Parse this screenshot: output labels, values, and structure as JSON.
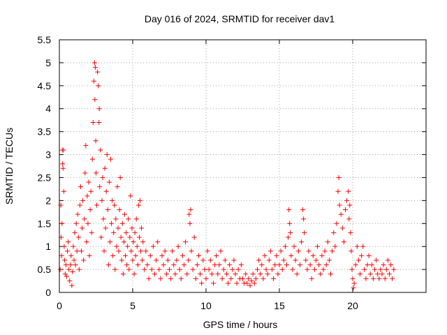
{
  "chart_data": {
    "type": "scatter",
    "title": "Day 016 of 2024, SRMTID for receiver dav1",
    "xlabel": "GPS time / hours",
    "ylabel": "SRMTID / TECUs",
    "xlim": [
      0,
      25
    ],
    "ylim": [
      0,
      5.5
    ],
    "xticks": [
      0,
      5,
      10,
      15,
      20
    ],
    "xtick_labels": [
      "0",
      "5",
      "10",
      "15",
      "20"
    ],
    "yticks": [
      0,
      0.5,
      1,
      1.5,
      2,
      2.5,
      3,
      3.5,
      4,
      4.5,
      5,
      5.5
    ],
    "ytick_labels": [
      "0",
      "0.5",
      "1",
      "1.5",
      "2",
      "2.5",
      "3",
      "3.5",
      "4",
      "4.5",
      "5",
      "5.5"
    ],
    "grid": true,
    "marker": "+",
    "color": "#ff0000",
    "series": [
      {
        "name": "SRMTID",
        "points": [
          [
            0.05,
            0.5
          ],
          [
            0.1,
            1.9
          ],
          [
            0.12,
            1.2
          ],
          [
            0.15,
            0.8
          ],
          [
            0.18,
            1.5
          ],
          [
            0.2,
            3.1
          ],
          [
            0.22,
            2.8
          ],
          [
            0.25,
            2.7
          ],
          [
            0.28,
            3.1
          ],
          [
            0.3,
            2.2
          ],
          [
            0.33,
            1.0
          ],
          [
            0.36,
            0.7
          ],
          [
            0.4,
            0.4
          ],
          [
            0.45,
            0.6
          ],
          [
            0.5,
            0.35
          ],
          [
            0.55,
            0.9
          ],
          [
            0.6,
            1.1
          ],
          [
            0.65,
            0.5
          ],
          [
            0.7,
            0.25
          ],
          [
            0.75,
            0.6
          ],
          [
            0.8,
            0.8
          ],
          [
            0.85,
            0.15
          ],
          [
            0.9,
            0.45
          ],
          [
            0.95,
            1.0
          ],
          [
            1.0,
            0.7
          ],
          [
            1.05,
            1.3
          ],
          [
            1.1,
            0.6
          ],
          [
            1.15,
            1.5
          ],
          [
            1.2,
            0.9
          ],
          [
            1.25,
            1.7
          ],
          [
            1.3,
            1.2
          ],
          [
            1.35,
            0.5
          ],
          [
            1.4,
            1.9
          ],
          [
            1.45,
            2.3
          ],
          [
            1.5,
            0.9
          ],
          [
            1.55,
            1.4
          ],
          [
            1.6,
            2.0
          ],
          [
            1.65,
            0.7
          ],
          [
            1.7,
            1.6
          ],
          [
            1.75,
            2.6
          ],
          [
            1.8,
            3.2
          ],
          [
            1.85,
            1.1
          ],
          [
            1.9,
            2.1
          ],
          [
            1.95,
            1.5
          ],
          [
            2.0,
            2.4
          ],
          [
            2.05,
            0.8
          ],
          [
            2.1,
            1.8
          ],
          [
            2.15,
            2.2
          ],
          [
            2.2,
            1.3
          ],
          [
            2.25,
            2.9
          ],
          [
            2.3,
            3.7
          ],
          [
            2.35,
            4.6
          ],
          [
            2.4,
            5.0
          ],
          [
            2.42,
            4.2
          ],
          [
            2.45,
            4.9
          ],
          [
            2.48,
            3.3
          ],
          [
            2.5,
            2.6
          ],
          [
            2.55,
            1.9
          ],
          [
            2.6,
            4.8
          ],
          [
            2.65,
            4.5
          ],
          [
            2.7,
            3.7
          ],
          [
            2.72,
            4.0
          ],
          [
            2.75,
            2.3
          ],
          [
            2.8,
            3.1
          ],
          [
            2.85,
            1.2
          ],
          [
            2.9,
            2.0
          ],
          [
            2.95,
            2.5
          ],
          [
            3.0,
            1.6
          ],
          [
            3.05,
            0.9
          ],
          [
            3.1,
            2.7
          ],
          [
            3.15,
            1.4
          ],
          [
            3.2,
            2.2
          ],
          [
            3.25,
            3.0
          ],
          [
            3.3,
            1.8
          ],
          [
            3.35,
            0.6
          ],
          [
            3.4,
            2.4
          ],
          [
            3.45,
            1.1
          ],
          [
            3.5,
            2.9
          ],
          [
            3.55,
            1.5
          ],
          [
            3.6,
            2.0
          ],
          [
            3.65,
            0.8
          ],
          [
            3.7,
            1.3
          ],
          [
            3.75,
            1.9
          ],
          [
            3.8,
            0.5
          ],
          [
            3.85,
            1.6
          ],
          [
            3.9,
            1.0
          ],
          [
            3.95,
            2.3
          ],
          [
            4.0,
            1.4
          ],
          [
            4.05,
            0.9
          ],
          [
            4.1,
            1.8
          ],
          [
            4.15,
            2.5
          ],
          [
            4.2,
            1.2
          ],
          [
            4.25,
            0.7
          ],
          [
            4.3,
            1.5
          ],
          [
            4.35,
            0.4
          ],
          [
            4.4,
            1.1
          ],
          [
            4.45,
            1.7
          ],
          [
            4.5,
            0.8
          ],
          [
            4.55,
            1.3
          ],
          [
            4.6,
            0.6
          ],
          [
            4.65,
            1.0
          ],
          [
            4.7,
            1.6
          ],
          [
            4.75,
            0.5
          ],
          [
            4.8,
            1.2
          ],
          [
            4.85,
            2.1
          ],
          [
            4.9,
            0.9
          ],
          [
            4.95,
            1.4
          ],
          [
            5.0,
            0.7
          ],
          [
            5.05,
            1.1
          ],
          [
            5.1,
            0.4
          ],
          [
            5.15,
            1.3
          ],
          [
            5.2,
            0.8
          ],
          [
            5.25,
            1.6
          ],
          [
            5.3,
            1.0
          ],
          [
            5.35,
            0.6
          ],
          [
            5.4,
            1.9
          ],
          [
            5.45,
            1.2
          ],
          [
            5.5,
            2.0
          ],
          [
            5.55,
            0.9
          ],
          [
            5.6,
            1.4
          ],
          [
            5.65,
            0.7
          ],
          [
            5.7,
            1.1
          ],
          [
            5.8,
            0.5
          ],
          [
            5.9,
            0.9
          ],
          [
            6.0,
            0.6
          ],
          [
            6.1,
            0.3
          ],
          [
            6.2,
            0.8
          ],
          [
            6.3,
            0.5
          ],
          [
            6.4,
            1.0
          ],
          [
            6.5,
            0.4
          ],
          [
            6.6,
            0.7
          ],
          [
            6.7,
            1.1
          ],
          [
            6.8,
            0.5
          ],
          [
            6.9,
            0.3
          ],
          [
            7.0,
            0.8
          ],
          [
            7.1,
            0.6
          ],
          [
            7.2,
            0.9
          ],
          [
            7.3,
            0.4
          ],
          [
            7.4,
            0.7
          ],
          [
            7.5,
            0.5
          ],
          [
            7.6,
            0.3
          ],
          [
            7.7,
            0.9
          ],
          [
            7.8,
            0.6
          ],
          [
            7.9,
            0.4
          ],
          [
            8.0,
            0.7
          ],
          [
            8.1,
            1.0
          ],
          [
            8.2,
            0.5
          ],
          [
            8.3,
            0.3
          ],
          [
            8.4,
            0.8
          ],
          [
            8.5,
            0.6
          ],
          [
            8.6,
            1.1
          ],
          [
            8.7,
            0.4
          ],
          [
            8.8,
            0.7
          ],
          [
            8.85,
            1.7
          ],
          [
            8.9,
            1.5
          ],
          [
            8.95,
            1.8
          ],
          [
            9.0,
            0.9
          ],
          [
            9.1,
            0.5
          ],
          [
            9.2,
            1.2
          ],
          [
            9.3,
            0.3
          ],
          [
            9.4,
            0.6
          ],
          [
            9.5,
            0.8
          ],
          [
            9.6,
            0.4
          ],
          [
            9.7,
            0.2
          ],
          [
            9.8,
            0.7
          ],
          [
            9.9,
            0.5
          ],
          [
            10.0,
            0.3
          ],
          [
            10.1,
            0.9
          ],
          [
            10.2,
            0.5
          ],
          [
            10.3,
            0.7
          ],
          [
            10.4,
            0.4
          ],
          [
            10.5,
            0.2
          ],
          [
            10.6,
            0.6
          ],
          [
            10.7,
            0.8
          ],
          [
            10.8,
            0.4
          ],
          [
            10.9,
            0.6
          ],
          [
            11.0,
            0.9
          ],
          [
            11.1,
            0.3
          ],
          [
            11.2,
            0.5
          ],
          [
            11.3,
            0.7
          ],
          [
            11.4,
            0.4
          ],
          [
            11.5,
            0.2
          ],
          [
            11.6,
            0.6
          ],
          [
            11.7,
            0.3
          ],
          [
            11.8,
            0.5
          ],
          [
            11.9,
            0.7
          ],
          [
            12.0,
            0.4
          ],
          [
            12.1,
            0.2
          ],
          [
            12.2,
            0.5
          ],
          [
            12.3,
            0.3
          ],
          [
            12.4,
            0.6
          ],
          [
            12.5,
            0.3
          ],
          [
            12.6,
            0.2
          ],
          [
            12.7,
            0.4
          ],
          [
            12.8,
            0.2
          ],
          [
            12.9,
            0.3
          ],
          [
            13.0,
            0.15
          ],
          [
            13.1,
            0.25
          ],
          [
            13.2,
            0.4
          ],
          [
            13.3,
            0.2
          ],
          [
            13.4,
            0.3
          ],
          [
            13.5,
            0.5
          ],
          [
            13.6,
            0.7
          ],
          [
            13.7,
            0.4
          ],
          [
            13.8,
            0.6
          ],
          [
            13.9,
            0.3
          ],
          [
            14.0,
            0.8
          ],
          [
            14.1,
            0.5
          ],
          [
            14.2,
            0.4
          ],
          [
            14.3,
            0.7
          ],
          [
            14.4,
            0.9
          ],
          [
            14.5,
            0.5
          ],
          [
            14.6,
            0.3
          ],
          [
            14.7,
            0.6
          ],
          [
            14.8,
            0.8
          ],
          [
            14.9,
            0.4
          ],
          [
            15.0,
            0.6
          ],
          [
            15.1,
            0.9
          ],
          [
            15.2,
            0.5
          ],
          [
            15.3,
            0.7
          ],
          [
            15.4,
            1.0
          ],
          [
            15.5,
            0.6
          ],
          [
            15.6,
            1.2
          ],
          [
            15.65,
            1.8
          ],
          [
            15.7,
            1.5
          ],
          [
            15.75,
            1.3
          ],
          [
            15.8,
            0.8
          ],
          [
            15.9,
            0.5
          ],
          [
            16.0,
            1.0
          ],
          [
            16.1,
            0.7
          ],
          [
            16.2,
            0.4
          ],
          [
            16.3,
            0.9
          ],
          [
            16.4,
            0.6
          ],
          [
            16.5,
            1.1
          ],
          [
            16.6,
            1.8
          ],
          [
            16.65,
            1.6
          ],
          [
            16.7,
            1.3
          ],
          [
            16.8,
            0.7
          ],
          [
            16.9,
            0.5
          ],
          [
            17.0,
            0.9
          ],
          [
            17.1,
            0.6
          ],
          [
            17.2,
            0.3
          ],
          [
            17.3,
            0.8
          ],
          [
            17.4,
            0.5
          ],
          [
            17.5,
            0.7
          ],
          [
            17.6,
            1.0
          ],
          [
            17.7,
            0.6
          ],
          [
            17.8,
            0.4
          ],
          [
            17.9,
            0.8
          ],
          [
            18.0,
            0.5
          ],
          [
            18.1,
            0.9
          ],
          [
            18.2,
            0.6
          ],
          [
            18.3,
            1.1
          ],
          [
            18.4,
            0.7
          ],
          [
            18.5,
            0.4
          ],
          [
            18.6,
            0.9
          ],
          [
            18.7,
            1.3
          ],
          [
            18.8,
            1.0
          ],
          [
            18.9,
            1.5
          ],
          [
            19.0,
            2.2
          ],
          [
            19.05,
            2.5
          ],
          [
            19.1,
            1.9
          ],
          [
            19.2,
            1.7
          ],
          [
            19.3,
            1.4
          ],
          [
            19.4,
            1.1
          ],
          [
            19.5,
            1.8
          ],
          [
            19.6,
            2.0
          ],
          [
            19.7,
            2.2
          ],
          [
            19.75,
            1.6
          ],
          [
            19.8,
            1.9
          ],
          [
            19.85,
            1.3
          ],
          [
            19.9,
            0.9
          ],
          [
            19.95,
            0.5
          ],
          [
            20.0,
            0.3
          ],
          [
            20.05,
            0.1
          ],
          [
            20.1,
            0.2
          ],
          [
            20.2,
            0.6
          ],
          [
            20.3,
            1.0
          ],
          [
            20.4,
            0.7
          ],
          [
            20.5,
            0.4
          ],
          [
            20.6,
            0.8
          ],
          [
            20.7,
            1.0
          ],
          [
            20.8,
            0.5
          ],
          [
            20.9,
            0.3
          ],
          [
            21.0,
            0.6
          ],
          [
            21.1,
            0.8
          ],
          [
            21.2,
            0.4
          ],
          [
            21.3,
            0.6
          ],
          [
            21.4,
            0.3
          ],
          [
            21.5,
            0.5
          ],
          [
            21.6,
            0.7
          ],
          [
            21.7,
            0.4
          ],
          [
            21.8,
            0.3
          ],
          [
            21.9,
            0.5
          ],
          [
            22.0,
            0.4
          ],
          [
            22.1,
            0.6
          ],
          [
            22.2,
            0.3
          ],
          [
            22.3,
            0.5
          ],
          [
            22.4,
            0.7
          ],
          [
            22.5,
            0.4
          ],
          [
            22.6,
            0.6
          ],
          [
            22.7,
            0.3
          ],
          [
            22.8,
            0.5
          ]
        ]
      }
    ]
  }
}
